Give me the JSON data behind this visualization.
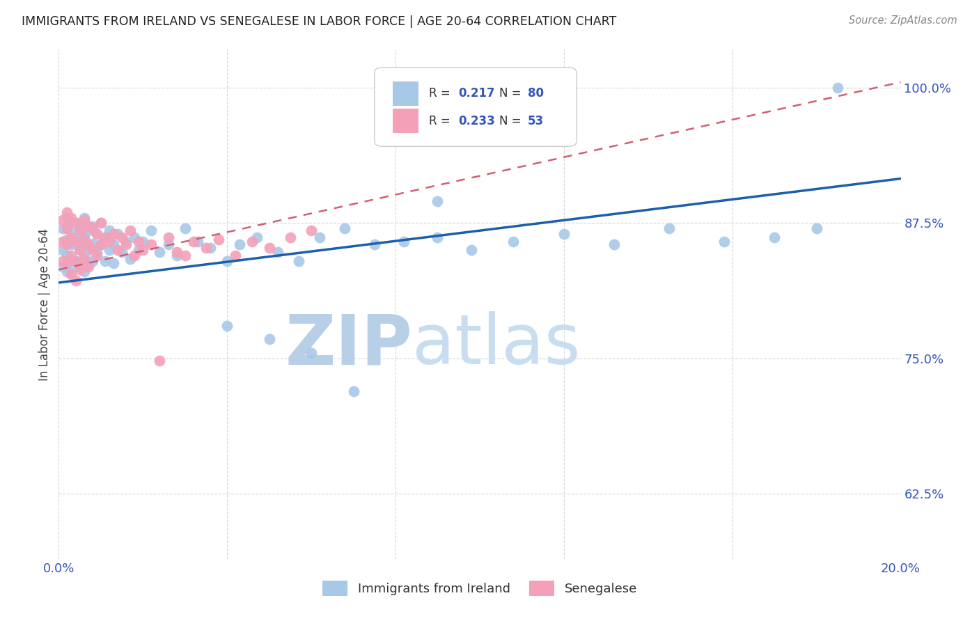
{
  "title": "IMMIGRANTS FROM IRELAND VS SENEGALESE IN LABOR FORCE | AGE 20-64 CORRELATION CHART",
  "source": "Source: ZipAtlas.com",
  "ylabel": "In Labor Force | Age 20-64",
  "xlim": [
    0.0,
    0.2
  ],
  "ylim": [
    0.565,
    1.035
  ],
  "ytick_positions": [
    0.625,
    0.75,
    0.875,
    1.0
  ],
  "ytick_labels": [
    "62.5%",
    "75.0%",
    "87.5%",
    "100.0%"
  ],
  "xtick_positions": [
    0.0,
    0.04,
    0.08,
    0.12,
    0.16,
    0.2
  ],
  "xtick_labels": [
    "0.0%",
    "",
    "",
    "",
    "",
    "20.0%"
  ],
  "R_ireland": 0.217,
  "N_ireland": 80,
  "R_senegalese": 0.233,
  "N_senegalese": 53,
  "color_ireland": "#a8c8e8",
  "color_senegalese": "#f4a0b8",
  "color_ireland_line": "#1c5faa",
  "color_senegalese_line": "#d06070",
  "watermark_zip": "ZIP",
  "watermark_atlas": "atlas",
  "watermark_color": "#ccddf0",
  "ireland_x": [
    0.001,
    0.001,
    0.001,
    0.002,
    0.002,
    0.002,
    0.002,
    0.002,
    0.003,
    0.003,
    0.003,
    0.003,
    0.003,
    0.004,
    0.004,
    0.004,
    0.004,
    0.005,
    0.005,
    0.005,
    0.005,
    0.005,
    0.006,
    0.006,
    0.006,
    0.006,
    0.007,
    0.007,
    0.007,
    0.008,
    0.008,
    0.008,
    0.009,
    0.009,
    0.01,
    0.01,
    0.011,
    0.011,
    0.012,
    0.012,
    0.013,
    0.013,
    0.014,
    0.015,
    0.016,
    0.017,
    0.018,
    0.019,
    0.02,
    0.022,
    0.024,
    0.026,
    0.028,
    0.03,
    0.033,
    0.036,
    0.04,
    0.043,
    0.047,
    0.052,
    0.057,
    0.062,
    0.068,
    0.075,
    0.082,
    0.09,
    0.098,
    0.108,
    0.12,
    0.132,
    0.145,
    0.158,
    0.17,
    0.18,
    0.04,
    0.05,
    0.06,
    0.07,
    0.09,
    0.185
  ],
  "ireland_y": [
    0.85,
    0.835,
    0.87,
    0.88,
    0.86,
    0.845,
    0.83,
    0.87,
    0.875,
    0.855,
    0.84,
    0.862,
    0.83,
    0.87,
    0.855,
    0.84,
    0.875,
    0.865,
    0.85,
    0.835,
    0.875,
    0.858,
    0.88,
    0.862,
    0.845,
    0.83,
    0.868,
    0.852,
    0.838,
    0.872,
    0.856,
    0.84,
    0.865,
    0.848,
    0.875,
    0.855,
    0.862,
    0.84,
    0.868,
    0.85,
    0.855,
    0.838,
    0.865,
    0.848,
    0.858,
    0.842,
    0.862,
    0.85,
    0.858,
    0.868,
    0.848,
    0.855,
    0.845,
    0.87,
    0.858,
    0.852,
    0.84,
    0.855,
    0.862,
    0.848,
    0.84,
    0.862,
    0.87,
    0.855,
    0.858,
    0.862,
    0.85,
    0.858,
    0.865,
    0.855,
    0.87,
    0.858,
    0.862,
    0.87,
    0.78,
    0.768,
    0.755,
    0.72,
    0.895,
    1.0
  ],
  "senegalese_x": [
    0.001,
    0.001,
    0.001,
    0.002,
    0.002,
    0.002,
    0.002,
    0.003,
    0.003,
    0.003,
    0.003,
    0.004,
    0.004,
    0.004,
    0.004,
    0.005,
    0.005,
    0.005,
    0.006,
    0.006,
    0.006,
    0.007,
    0.007,
    0.007,
    0.008,
    0.008,
    0.009,
    0.009,
    0.01,
    0.01,
    0.011,
    0.012,
    0.013,
    0.014,
    0.015,
    0.016,
    0.017,
    0.018,
    0.019,
    0.02,
    0.022,
    0.024,
    0.026,
    0.028,
    0.03,
    0.032,
    0.035,
    0.038,
    0.042,
    0.046,
    0.05,
    0.055,
    0.06
  ],
  "senegalese_y": [
    0.878,
    0.858,
    0.84,
    0.885,
    0.87,
    0.855,
    0.838,
    0.88,
    0.862,
    0.845,
    0.828,
    0.875,
    0.858,
    0.84,
    0.822,
    0.868,
    0.85,
    0.832,
    0.878,
    0.86,
    0.842,
    0.872,
    0.855,
    0.835,
    0.87,
    0.85,
    0.865,
    0.845,
    0.875,
    0.855,
    0.862,
    0.858,
    0.865,
    0.85,
    0.862,
    0.855,
    0.868,
    0.845,
    0.858,
    0.85,
    0.855,
    0.748,
    0.862,
    0.848,
    0.845,
    0.858,
    0.852,
    0.86,
    0.845,
    0.858,
    0.852,
    0.862,
    0.868
  ],
  "ireland_line_x0": 0.0,
  "ireland_line_y0": 0.82,
  "ireland_line_x1": 0.2,
  "ireland_line_y1": 0.916,
  "senegalese_line_x0": 0.0,
  "senegalese_line_y0": 0.832,
  "senegalese_line_x1": 0.2,
  "senegalese_line_y1": 1.005
}
